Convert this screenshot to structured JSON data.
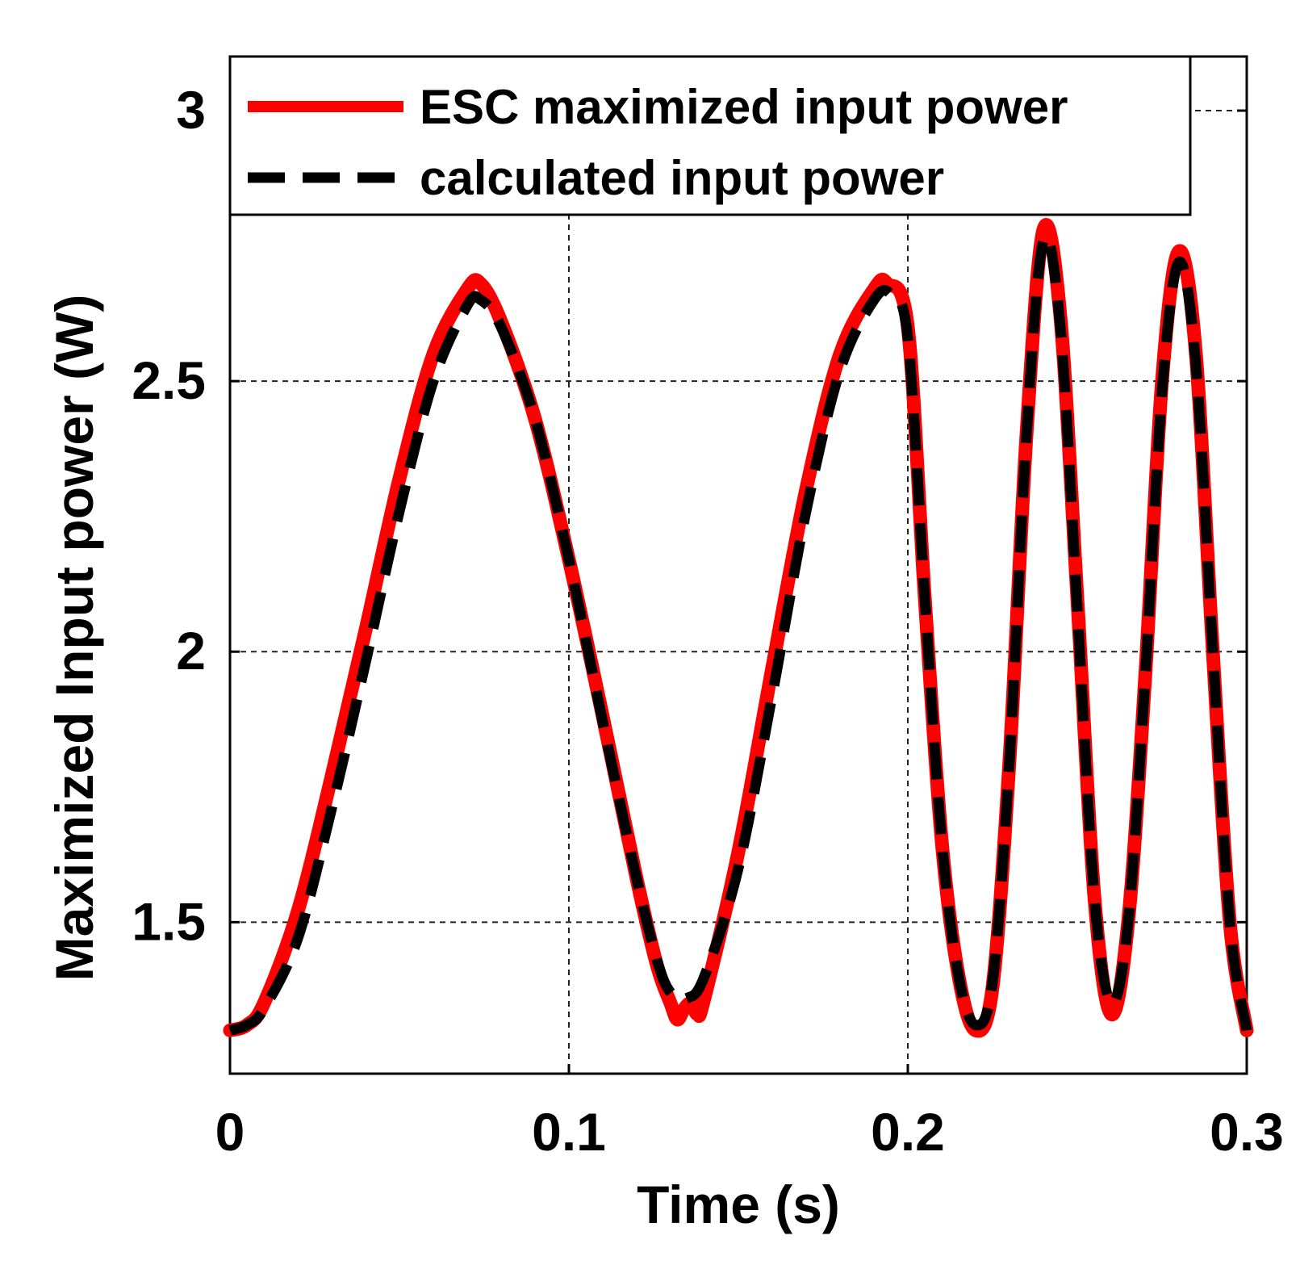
{
  "chart_data": {
    "type": "line",
    "title": "",
    "xlabel": "Time (s)",
    "ylabel": "Maximized Input power (W)",
    "xlim": [
      0,
      0.3
    ],
    "ylim": [
      1.22,
      3.1
    ],
    "xticks": [
      0,
      0.1,
      0.2,
      0.3
    ],
    "xtick_labels": [
      "0",
      "0.1",
      "0.2",
      "0.3"
    ],
    "yticks": [
      1.5,
      2,
      2.5,
      3
    ],
    "ytick_labels": [
      "1.5",
      "2",
      "2.5",
      "3"
    ],
    "grid": true,
    "legend_position": "top",
    "series": [
      {
        "name": "ESC maximized input power",
        "color": "#ff0000",
        "style": "solid",
        "x": [
          0,
          0.005,
          0.01,
          0.02,
          0.03,
          0.04,
          0.05,
          0.06,
          0.07,
          0.074,
          0.08,
          0.09,
          0.1,
          0.11,
          0.12,
          0.126,
          0.13,
          0.132,
          0.134,
          0.136,
          0.138,
          0.14,
          0.15,
          0.16,
          0.17,
          0.18,
          0.19,
          0.194,
          0.2,
          0.205,
          0.21,
          0.215,
          0.22,
          0.225,
          0.23,
          0.235,
          0.24,
          0.245,
          0.25,
          0.255,
          0.26,
          0.265,
          0.27,
          0.275,
          0.28,
          0.285,
          0.29,
          0.295,
          0.3
        ],
        "y": [
          1.3,
          1.31,
          1.35,
          1.52,
          1.77,
          2.04,
          2.32,
          2.55,
          2.67,
          2.68,
          2.61,
          2.43,
          2.17,
          1.88,
          1.58,
          1.42,
          1.35,
          1.32,
          1.34,
          1.35,
          1.33,
          1.36,
          1.63,
          1.97,
          2.3,
          2.55,
          2.67,
          2.68,
          2.6,
          2.1,
          1.65,
          1.4,
          1.3,
          1.38,
          1.8,
          2.4,
          2.78,
          2.62,
          2.1,
          1.55,
          1.33,
          1.5,
          1.95,
          2.5,
          2.74,
          2.55,
          2.0,
          1.5,
          1.3
        ]
      },
      {
        "name": "calculated input power",
        "color": "#000000",
        "style": "dashed",
        "x": [
          0,
          0.005,
          0.01,
          0.02,
          0.03,
          0.04,
          0.05,
          0.06,
          0.07,
          0.074,
          0.08,
          0.09,
          0.1,
          0.11,
          0.12,
          0.126,
          0.13,
          0.135,
          0.14,
          0.15,
          0.16,
          0.17,
          0.18,
          0.19,
          0.195,
          0.2,
          0.205,
          0.21,
          0.215,
          0.22,
          0.225,
          0.23,
          0.235,
          0.24,
          0.245,
          0.25,
          0.255,
          0.26,
          0.265,
          0.27,
          0.275,
          0.28,
          0.285,
          0.29,
          0.295,
          0.3
        ],
        "y": [
          1.3,
          1.31,
          1.34,
          1.47,
          1.71,
          1.98,
          2.26,
          2.5,
          2.64,
          2.65,
          2.6,
          2.43,
          2.17,
          1.87,
          1.58,
          1.43,
          1.37,
          1.36,
          1.4,
          1.6,
          1.92,
          2.26,
          2.52,
          2.65,
          2.66,
          2.58,
          2.1,
          1.65,
          1.4,
          1.31,
          1.39,
          1.8,
          2.4,
          2.76,
          2.6,
          2.08,
          1.55,
          1.35,
          1.5,
          1.95,
          2.48,
          2.72,
          2.53,
          2.0,
          1.5,
          1.3
        ]
      }
    ]
  }
}
